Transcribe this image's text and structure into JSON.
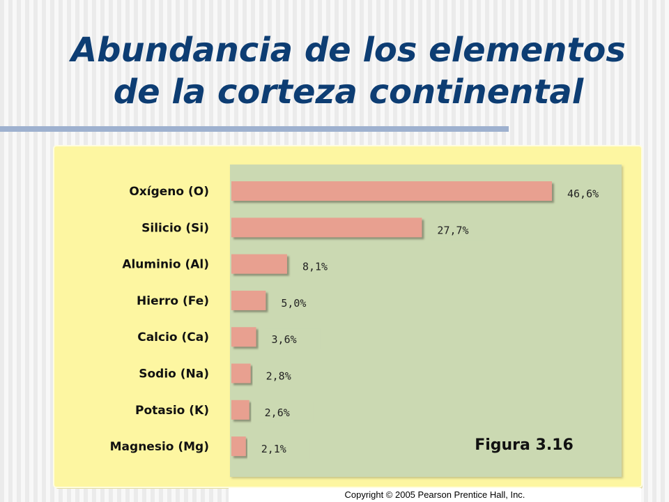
{
  "slide": {
    "title_line1": "Abundancia de los elementos",
    "title_line2": "de la corteza continental",
    "copyright": "Copyright © 2005 Pearson Prentice Hall, Inc."
  },
  "chart_data": {
    "type": "bar",
    "orientation": "horizontal",
    "categories": [
      "Oxígeno (O)",
      "Silicio (Si)",
      "Aluminio (Al)",
      "Hierro (Fe)",
      "Calcio (Ca)",
      "Sodio (Na)",
      "Potasio (K)",
      "Magnesio (Mg)"
    ],
    "values": [
      46.6,
      27.7,
      8.1,
      5.0,
      3.6,
      2.8,
      2.6,
      2.1
    ],
    "value_labels": [
      "46,6%",
      "27,7%",
      "8,1%",
      "5,0%",
      "3,6%",
      "2,8%",
      "2,6%",
      "2,1%"
    ],
    "unit": "%",
    "annotation": "Figura 3.16",
    "grid": false,
    "legend": "none",
    "colors": {
      "bar": "#e8a090",
      "plot_background": "#cbd9b2",
      "figure_background": "#fdf6a1",
      "label_box": "#cbd9b2",
      "category_text": "#111111",
      "value_text": "#222222"
    }
  }
}
